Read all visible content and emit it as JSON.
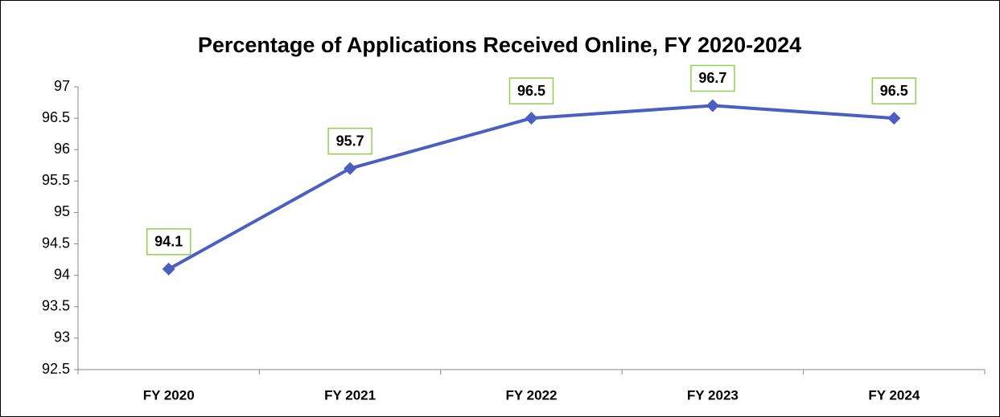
{
  "chart_data": {
    "type": "line",
    "title": "Percentage of Applications Received Online, FY 2020-2024",
    "categories": [
      "FY 2020",
      "FY 2021",
      "FY 2022",
      "FY 2023",
      "FY 2024"
    ],
    "values": [
      94.1,
      95.7,
      96.5,
      96.7,
      96.5
    ],
    "color": "#4a5fc1",
    "label_border_color": "#92d050",
    "ylim": [
      92.5,
      97
    ],
    "yticks": [
      92.5,
      93,
      93.5,
      94,
      94.5,
      95,
      95.5,
      96,
      96.5,
      97
    ],
    "grid": false
  }
}
